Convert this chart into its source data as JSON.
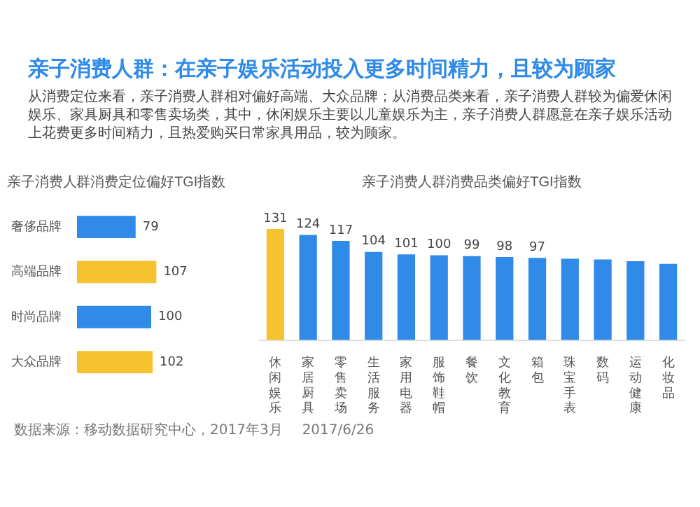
{
  "chart_data": [
    {
      "type": "other",
      "title": "亲子消费人群：在亲子娱乐活动投入更多时间精力，且较为顾家",
      "subtitle": "从消费定位来看，亲子消费人群相对偏好高端、大众品牌；从消费品类来看，亲子消费人群较为偏爱休闲娱乐、家具厨具和零售卖场类，其中，休闲娱乐主要以儿童娱乐为主，亲子消费人群愿意在亲子娱乐活动上花费更多时间精力，且热爱购买日常家具用品，较为顾家。",
      "annotations": [
        "数据来源：移动数据研究中心，2017年3月",
        "2017/6/26"
      ]
    },
    {
      "type": "bar",
      "orientation": "horizontal",
      "title": "亲子消费人群消费定位偏好TGI指数",
      "categories": [
        "奢侈品牌",
        "高端品牌",
        "时尚品牌",
        "大众品牌"
      ],
      "values": [
        79,
        107,
        100,
        102
      ],
      "colors": [
        "#2f8ae8",
        "#f7c22f",
        "#2f8ae8",
        "#f7c22f"
      ],
      "data_labels": true
    },
    {
      "type": "bar",
      "title": "亲子消费人群消费品类偏好TGI指数",
      "categories": [
        "休闲娱乐",
        "家居厨具",
        "零售卖场",
        "生活服务",
        "家用电器",
        "服饰鞋帽",
        "餐饮",
        "文化教育",
        "箱包",
        "珠宝手表",
        "数码",
        "运动健康",
        "化妆品"
      ],
      "values": [
        131,
        124,
        117,
        104,
        101,
        100,
        99,
        98,
        97,
        96,
        95,
        93,
        90
      ],
      "value_labels": [
        "131",
        "124",
        "117",
        "104",
        "101",
        "100",
        "99",
        "98",
        "97",
        null,
        null,
        null,
        null
      ],
      "colors": [
        "#f7c22f",
        "#2f8ae8",
        "#2f8ae8",
        "#2f8ae8",
        "#2f8ae8",
        "#2f8ae8",
        "#2f8ae8",
        "#2f8ae8",
        "#2f8ae8",
        "#2f8ae8",
        "#2f8ae8",
        "#2f8ae8",
        "#2f8ae8"
      ]
    }
  ]
}
